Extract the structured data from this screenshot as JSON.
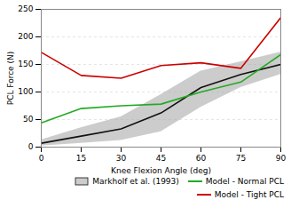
{
  "chart_data": {
    "type": "line",
    "x": [
      0,
      15,
      30,
      45,
      60,
      75,
      90
    ],
    "xlabel": "Knee Flexion Angle (deg)",
    "ylabel": "PCL Force (N)",
    "xlim": [
      0,
      90
    ],
    "xticks": [
      0,
      15,
      30,
      45,
      60,
      75,
      90
    ],
    "ylim": [
      0,
      250
    ],
    "yticks": [
      0,
      50,
      100,
      150,
      200,
      250
    ],
    "grid": true,
    "legend": "lower right",
    "series": [
      {
        "name": "Markholf et al. (1993)",
        "color": "#111111",
        "values": [
          7,
          20,
          33,
          62,
          108,
          132,
          150
        ],
        "upper": [
          13,
          35,
          55,
          95,
          138,
          155,
          172
        ],
        "lower": [
          2,
          7,
          12,
          28,
          72,
          108,
          132
        ],
        "band_color": "#aaaaaa"
      },
      {
        "name": "Model - Normal PCL",
        "color": "#22aa22",
        "values": [
          44,
          70,
          75,
          78,
          100,
          118,
          168
        ]
      },
      {
        "name": "Model - Tight PCL",
        "color": "#cc0000",
        "values": [
          172,
          130,
          125,
          148,
          153,
          143,
          235
        ]
      }
    ]
  }
}
